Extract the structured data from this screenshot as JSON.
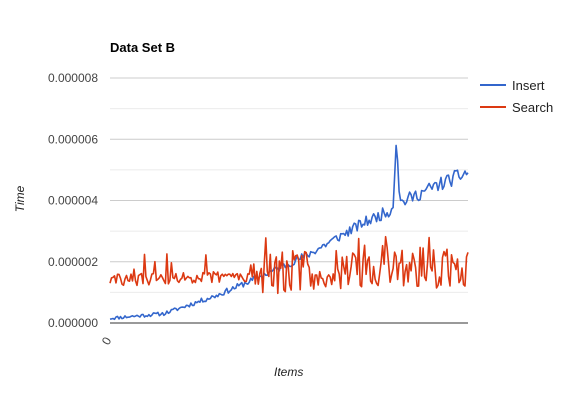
{
  "chart_data": {
    "type": "line",
    "title": "Data Set B",
    "xlabel": "Items",
    "ylabel": "Time",
    "x_tick_labels": [
      "0"
    ],
    "y_tick_labels": [
      "0.000000",
      "0.000002",
      "0.000004",
      "0.000006",
      "0.000008"
    ],
    "ylim": [
      0,
      8e-06
    ],
    "grid": true,
    "legend_position": "right",
    "point_count": 240,
    "series": [
      {
        "name": "Insert",
        "color": "#3366cc",
        "trend": [
          [
            0,
            1.5e-07
          ],
          [
            0.15,
            3e-07
          ],
          [
            0.3,
            9e-07
          ],
          [
            0.4,
            1.4e-06
          ],
          [
            0.55,
            2.2e-06
          ],
          [
            0.7,
            3.2e-06
          ],
          [
            0.79,
            3.7e-06
          ],
          [
            0.8,
            6.1e-06
          ],
          [
            0.81,
            3.9e-06
          ],
          [
            0.9,
            4.4e-06
          ],
          [
            1,
            4.9e-06
          ]
        ]
      },
      {
        "name": "Search",
        "color": "#dc3912",
        "trend": [
          [
            0,
            1.4e-06
          ],
          [
            0.3,
            1.5e-06
          ],
          [
            0.45,
            1.6e-06
          ],
          [
            0.6,
            1.8e-06
          ],
          [
            0.8,
            1.9e-06
          ],
          [
            0.9,
            1.8e-06
          ],
          [
            1,
            1.8e-06
          ]
        ]
      }
    ]
  }
}
